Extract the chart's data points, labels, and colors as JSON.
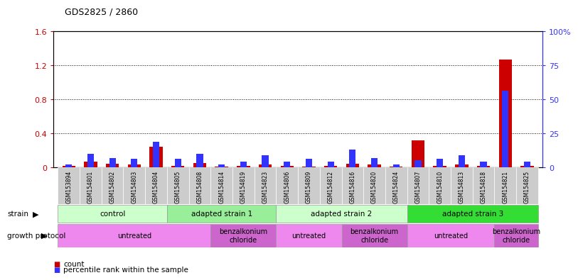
{
  "title": "GDS2825 / 2860",
  "samples": [
    "GSM153894",
    "GSM154801",
    "GSM154802",
    "GSM154803",
    "GSM154804",
    "GSM154805",
    "GSM154808",
    "GSM154814",
    "GSM154819",
    "GSM154823",
    "GSM154806",
    "GSM154809",
    "GSM154812",
    "GSM154816",
    "GSM154820",
    "GSM154824",
    "GSM154807",
    "GSM154810",
    "GSM154813",
    "GSM154818",
    "GSM154821",
    "GSM154825"
  ],
  "red_values": [
    0.02,
    0.07,
    0.04,
    0.03,
    0.24,
    0.02,
    0.05,
    0.01,
    0.02,
    0.03,
    0.02,
    0.01,
    0.02,
    0.04,
    0.03,
    0.01,
    0.32,
    0.02,
    0.03,
    0.02,
    1.27,
    0.02
  ],
  "blue_values": [
    2,
    10,
    7,
    6,
    19,
    6,
    10,
    2,
    4,
    9,
    4,
    6,
    4,
    13,
    7,
    2,
    5,
    6,
    9,
    4,
    56,
    4
  ],
  "ylim_left": [
    0,
    1.6
  ],
  "ylim_right": [
    0,
    100
  ],
  "yticks_left": [
    0.0,
    0.4,
    0.8,
    1.2,
    1.6
  ],
  "ytick_labels_left": [
    "0",
    "0.4",
    "0.8",
    "1.2",
    "1.6"
  ],
  "yticks_right": [
    0,
    25,
    50,
    75,
    100
  ],
  "ytick_labels_right": [
    "0",
    "25",
    "50",
    "75",
    "100%"
  ],
  "red_color": "#cc0000",
  "blue_color": "#3333ff",
  "bar_width": 0.6,
  "strain_groups": [
    {
      "label": "control",
      "start": 0,
      "end": 4,
      "color": "#ccffcc"
    },
    {
      "label": "adapted strain 1",
      "start": 5,
      "end": 9,
      "color": "#99ee99"
    },
    {
      "label": "adapted strain 2",
      "start": 10,
      "end": 15,
      "color": "#ccffcc"
    },
    {
      "label": "adapted strain 3",
      "start": 16,
      "end": 21,
      "color": "#33dd33"
    }
  ],
  "protocol_groups": [
    {
      "label": "untreated",
      "start": 0,
      "end": 6,
      "color": "#ee88ee"
    },
    {
      "label": "benzalkonium\nchloride",
      "start": 7,
      "end": 9,
      "color": "#cc66cc"
    },
    {
      "label": "untreated",
      "start": 10,
      "end": 12,
      "color": "#ee88ee"
    },
    {
      "label": "benzalkonium\nchloride",
      "start": 13,
      "end": 15,
      "color": "#cc66cc"
    },
    {
      "label": "untreated",
      "start": 16,
      "end": 19,
      "color": "#ee88ee"
    },
    {
      "label": "benzalkonium\nchloride",
      "start": 20,
      "end": 21,
      "color": "#cc66cc"
    }
  ],
  "legend_items": [
    {
      "label": "count",
      "color": "#cc0000"
    },
    {
      "label": "percentile rank within the sample",
      "color": "#3333ff"
    }
  ],
  "background_color": "#ffffff",
  "grid_color": "#000000",
  "tick_bg_color": "#cccccc"
}
